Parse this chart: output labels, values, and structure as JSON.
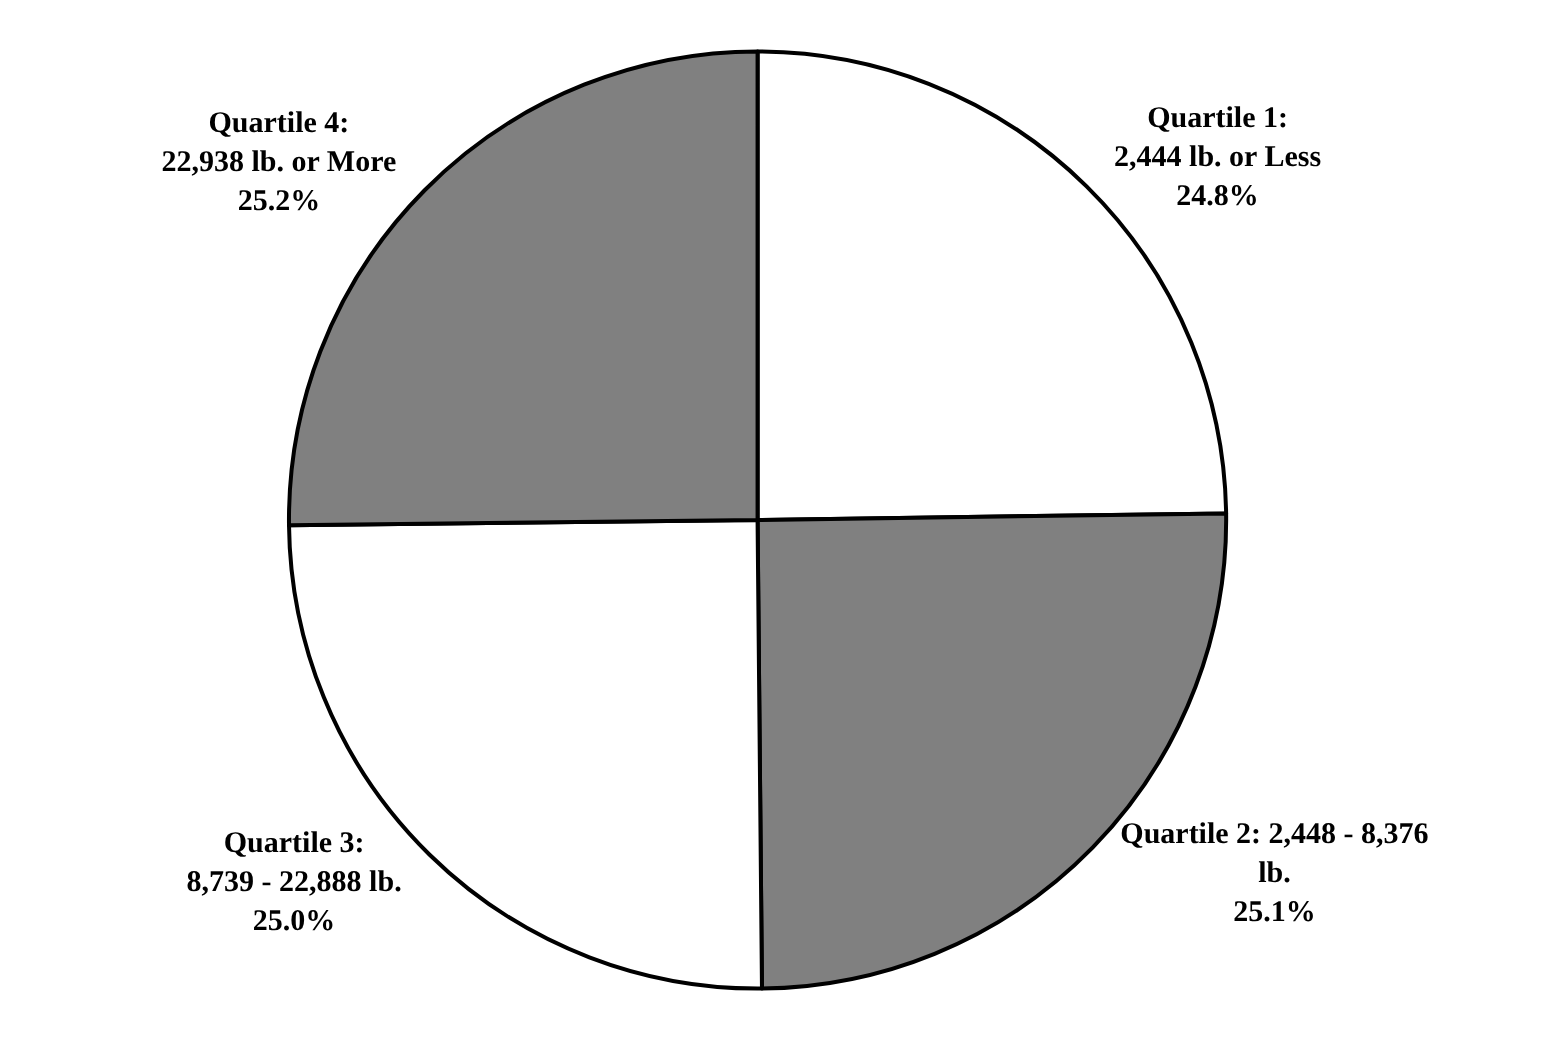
{
  "chart_data": {
    "type": "pie",
    "categories": [
      "Quartile 1:\n2,444 lb. or Less",
      "Quartile 2: 2,448 - 8,376\nlb.",
      "Quartile 3:\n8,739 - 22,888 lb.",
      "Quartile 4:\n22,938 lb. or More"
    ],
    "values": [
      24.8,
      25.1,
      25.0,
      25.2
    ],
    "value_labels": [
      "24.8%",
      "25.1%",
      "25.0%",
      "25.2%"
    ],
    "colors": [
      "#ffffff",
      "#808080",
      "#ffffff",
      "#808080"
    ],
    "legend": false
  }
}
